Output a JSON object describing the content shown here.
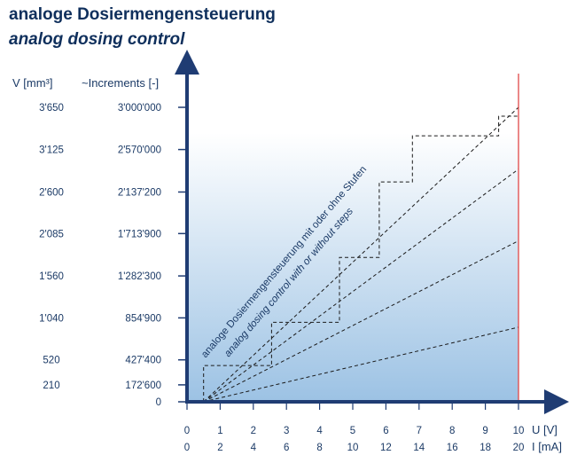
{
  "title": "analoge Dosiermengensteuerung",
  "subtitle": "analog dosing control",
  "chart_data": {
    "type": "line",
    "title": "analoge Dosiermengensteuerung",
    "subtitle": "analog dosing control",
    "y_label_volume": "V [mm³]",
    "y_label_increments": "~Increments [-]",
    "x_label_voltage": "U  [V]",
    "x_label_current": "I [mA]",
    "x_voltage_ticks": [
      "0",
      "1",
      "2",
      "3",
      "4",
      "5",
      "6",
      "7",
      "8",
      "9",
      "10"
    ],
    "x_current_ticks": [
      "0",
      "2",
      "4",
      "6",
      "8",
      "10",
      "12",
      "14",
      "16",
      "18",
      "20"
    ],
    "xlim_voltage": [
      0,
      10
    ],
    "ylim_increments": [
      0,
      3000000
    ],
    "y_ticks": [
      {
        "volume": "",
        "increments": "0",
        "value": 0
      },
      {
        "volume": "210",
        "increments": "172'600",
        "value": 172600
      },
      {
        "volume": "520",
        "increments": "427'400",
        "value": 427400
      },
      {
        "volume": "1'040",
        "increments": "854'900",
        "value": 854900
      },
      {
        "volume": "1'560",
        "increments": "1'282'300",
        "value": 1282300
      },
      {
        "volume": "2'085",
        "increments": "1'713'900",
        "value": 1713900
      },
      {
        "volume": "2'600",
        "increments": "2'137'200",
        "value": 2137200
      },
      {
        "volume": "3'125",
        "increments": "2'570'000",
        "value": 2570000
      },
      {
        "volume": "3'650",
        "increments": "3'000'000",
        "value": 3000000
      }
    ],
    "max_voltage_marker": 10,
    "lines": [
      {
        "start": [
          0.5,
          0
        ],
        "end": [
          10,
          3000000
        ]
      },
      {
        "start": [
          0.5,
          0
        ],
        "end": [
          10,
          2370000
        ]
      },
      {
        "start": [
          0.5,
          0
        ],
        "end": [
          10,
          1640000
        ]
      },
      {
        "start": [
          0.5,
          0
        ],
        "end": [
          10,
          760000
        ]
      }
    ],
    "step_profile": [
      [
        0.5,
        0
      ],
      [
        0.5,
        370000
      ],
      [
        2.55,
        370000
      ],
      [
        2.55,
        810000
      ],
      [
        4.6,
        810000
      ],
      [
        4.6,
        1470000
      ],
      [
        5.8,
        1470000
      ],
      [
        5.8,
        2240000
      ],
      [
        6.8,
        2240000
      ],
      [
        6.8,
        2710000
      ],
      [
        9.4,
        2710000
      ],
      [
        9.4,
        2910000
      ],
      [
        10,
        2910000
      ]
    ],
    "annotation_de": "analoge  Dosiermengensteuerung mit oder ohne Stufen",
    "annotation_en": "analog dosing control with or without steps",
    "grid": false,
    "colors": {
      "axis": "#1f3c73",
      "text": "#1b3a66",
      "marker": "#e04848",
      "gradient_top": "#ffffff",
      "gradient_bottom": "#9cc2e4"
    }
  }
}
